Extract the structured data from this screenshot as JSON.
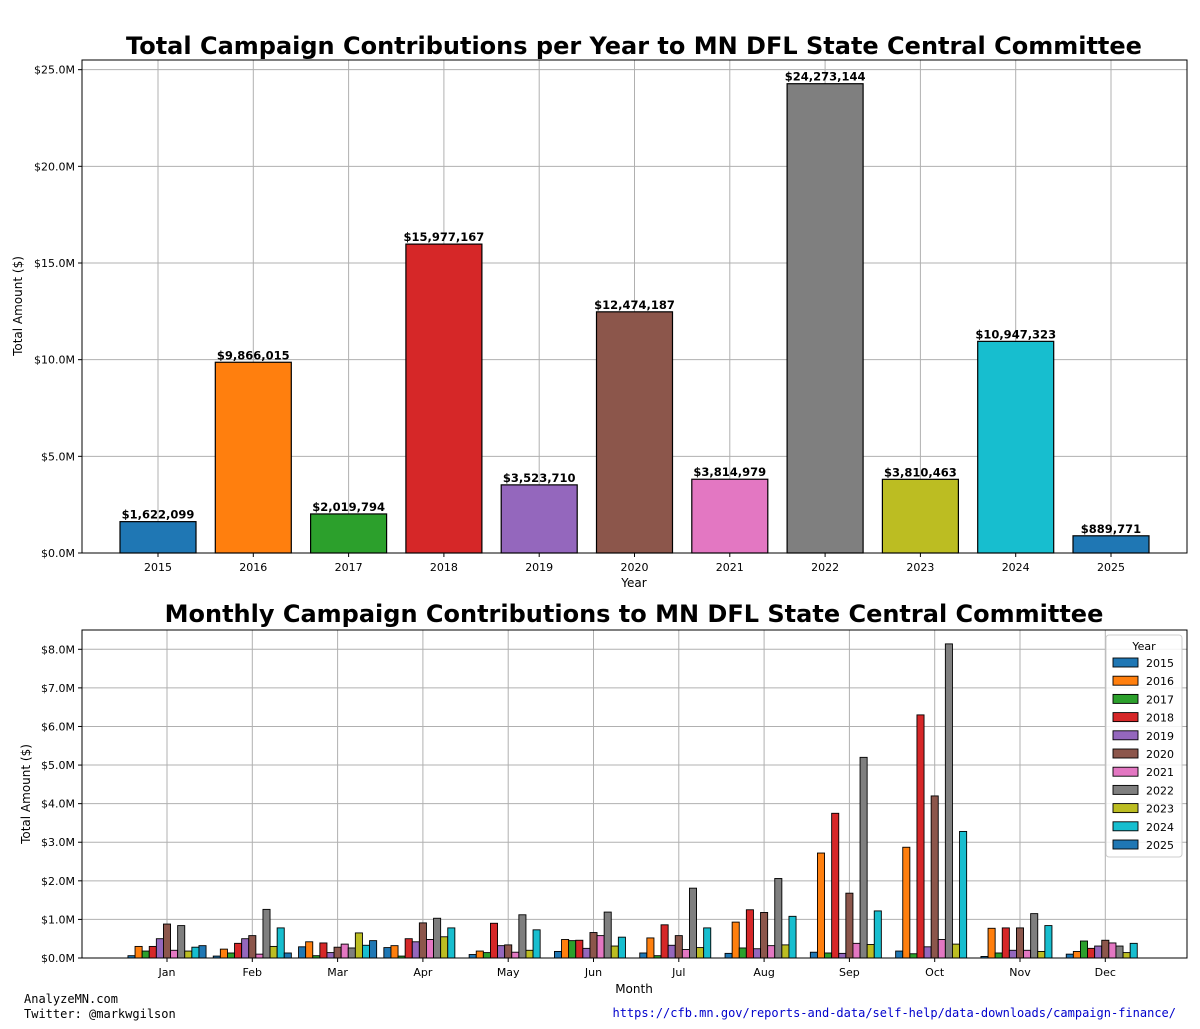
{
  "footer": {
    "site": "AnalyzeMN.com",
    "twitter": "Twitter: @markwgilson",
    "source_url": "https://cfb.mn.gov/reports-and-data/self-help/data-downloads/campaign-finance/"
  },
  "colors": {
    "2015": "#1f77b4",
    "2016": "#ff7f0e",
    "2017": "#2ca02c",
    "2018": "#d62728",
    "2019": "#9467bd",
    "2020": "#8c564b",
    "2021": "#e377c2",
    "2022": "#7f7f7f",
    "2023": "#bcbd22",
    "2024": "#17becf",
    "2025": "#1f77b4"
  },
  "chart_data": [
    {
      "type": "bar",
      "title": "Total Campaign Contributions per Year to MN DFL State Central Committee",
      "xlabel": "Year",
      "ylabel": "Total Amount ($)",
      "ylim": [
        0,
        25500000
      ],
      "yticks": [
        0,
        5000000,
        10000000,
        15000000,
        20000000,
        25000000
      ],
      "ytick_labels": [
        "$0.0M",
        "$5.0M",
        "$10.0M",
        "$15.0M",
        "$20.0M",
        "$25.0M"
      ],
      "grid": true,
      "categories": [
        "2015",
        "2016",
        "2017",
        "2018",
        "2019",
        "2020",
        "2021",
        "2022",
        "2023",
        "2024",
        "2025"
      ],
      "values": [
        1622099,
        9866015,
        2019794,
        15977167,
        3523710,
        12474187,
        3814979,
        24273144,
        3810463,
        10947323,
        889771
      ],
      "data_labels": [
        "$1,622,099",
        "$9,866,015",
        "$2,019,794",
        "$15,977,167",
        "$3,523,710",
        "$12,474,187",
        "$3,814,979",
        "$24,273,144",
        "$3,810,463",
        "$10,947,323",
        "$889,771"
      ]
    },
    {
      "type": "bar",
      "title": "Monthly Campaign Contributions to MN DFL State Central Committee",
      "xlabel": "Month",
      "ylabel": "Total Amount ($)",
      "ylim": [
        0,
        8500000
      ],
      "yticks": [
        0,
        1000000,
        2000000,
        3000000,
        4000000,
        5000000,
        6000000,
        7000000,
        8000000
      ],
      "ytick_labels": [
        "$0.0M",
        "$1.0M",
        "$2.0M",
        "$3.0M",
        "$4.0M",
        "$5.0M",
        "$6.0M",
        "$7.0M",
        "$8.0M"
      ],
      "grid": true,
      "legend_title": "Year",
      "legend_position": "top-right",
      "categories": [
        "Jan",
        "Feb",
        "Mar",
        "Apr",
        "May",
        "Jun",
        "Jul",
        "Aug",
        "Sep",
        "Oct",
        "Nov",
        "Dec"
      ],
      "series": [
        {
          "name": "2015",
          "values": [
            60000,
            50000,
            290000,
            270000,
            90000,
            170000,
            130000,
            120000,
            150000,
            180000,
            40000,
            100000
          ]
        },
        {
          "name": "2016",
          "values": [
            300000,
            230000,
            420000,
            320000,
            180000,
            480000,
            520000,
            930000,
            2720000,
            2870000,
            770000,
            170000
          ]
        },
        {
          "name": "2017",
          "values": [
            180000,
            130000,
            60000,
            50000,
            140000,
            450000,
            60000,
            260000,
            130000,
            110000,
            130000,
            440000
          ]
        },
        {
          "name": "2018",
          "values": [
            300000,
            380000,
            390000,
            500000,
            900000,
            460000,
            860000,
            1250000,
            3750000,
            6300000,
            780000,
            250000
          ]
        },
        {
          "name": "2019",
          "values": [
            500000,
            500000,
            140000,
            420000,
            320000,
            250000,
            330000,
            240000,
            120000,
            290000,
            200000,
            310000
          ]
        },
        {
          "name": "2020",
          "values": [
            880000,
            580000,
            280000,
            910000,
            340000,
            660000,
            580000,
            1180000,
            1680000,
            4200000,
            780000,
            460000
          ]
        },
        {
          "name": "2021",
          "values": [
            200000,
            100000,
            360000,
            480000,
            150000,
            580000,
            220000,
            320000,
            380000,
            480000,
            200000,
            390000
          ]
        },
        {
          "name": "2022",
          "values": [
            840000,
            1260000,
            260000,
            1030000,
            1120000,
            1190000,
            1810000,
            2060000,
            5200000,
            8140000,
            1150000,
            310000
          ]
        },
        {
          "name": "2023",
          "values": [
            180000,
            300000,
            650000,
            550000,
            200000,
            310000,
            270000,
            340000,
            350000,
            360000,
            170000,
            140000
          ]
        },
        {
          "name": "2024",
          "values": [
            280000,
            780000,
            330000,
            780000,
            730000,
            540000,
            780000,
            1080000,
            1220000,
            3280000,
            840000,
            380000
          ]
        },
        {
          "name": "2025",
          "values": [
            320000,
            130000,
            450000,
            0,
            0,
            0,
            0,
            0,
            0,
            0,
            0,
            0
          ]
        }
      ]
    }
  ]
}
